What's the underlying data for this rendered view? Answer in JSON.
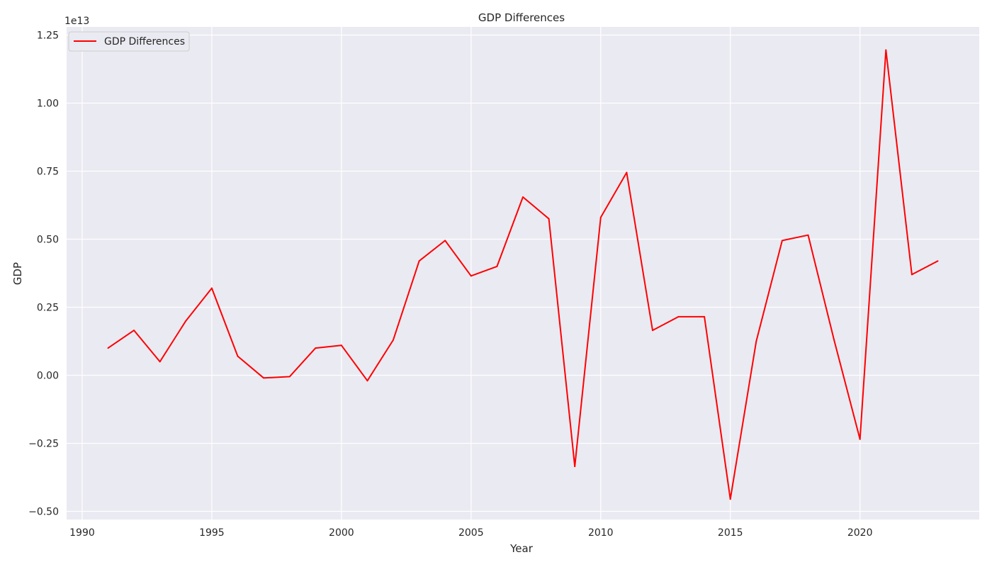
{
  "chart_data": {
    "type": "line",
    "title": "GDP Differences",
    "xlabel": "Year",
    "ylabel": "GDP",
    "y_offset_label": "1e13",
    "xlim": [
      1989.4,
      2024.6
    ],
    "ylim": [
      -0.53,
      1.28
    ],
    "y_scale_note": "values in units of 1e13",
    "x_ticks": [
      1990,
      1995,
      2000,
      2005,
      2010,
      2015,
      2020
    ],
    "x_tick_labels": [
      "1990",
      "1995",
      "2000",
      "2005",
      "2010",
      "2015",
      "2020"
    ],
    "y_ticks": [
      -0.5,
      -0.25,
      0.0,
      0.25,
      0.5,
      0.75,
      1.0,
      1.25
    ],
    "y_tick_labels": [
      "−0.50",
      "−0.25",
      "0.00",
      "0.25",
      "0.50",
      "0.75",
      "1.00",
      "1.25"
    ],
    "grid": true,
    "legend_position": "top-left",
    "background_color": "#eaeaf2",
    "grid_color": "#ffffff",
    "series": [
      {
        "name": "GDP Differences",
        "color": "#ff0000",
        "x": [
          1991,
          1992,
          1993,
          1994,
          1995,
          1996,
          1997,
          1998,
          1999,
          2000,
          2001,
          2002,
          2003,
          2004,
          2005,
          2006,
          2007,
          2008,
          2009,
          2010,
          2011,
          2012,
          2013,
          2014,
          2015,
          2016,
          2017,
          2018,
          2019,
          2020,
          2021,
          2022,
          2023
        ],
        "y": [
          0.1,
          0.165,
          0.05,
          0.2,
          0.32,
          0.07,
          -0.01,
          -0.005,
          0.1,
          0.11,
          -0.02,
          0.13,
          0.42,
          0.495,
          0.365,
          0.4,
          0.655,
          0.575,
          -0.335,
          0.58,
          0.745,
          0.165,
          0.215,
          0.215,
          -0.455,
          0.125,
          0.495,
          0.515,
          0.13,
          -0.235,
          1.195,
          0.37,
          0.42
        ]
      }
    ]
  }
}
